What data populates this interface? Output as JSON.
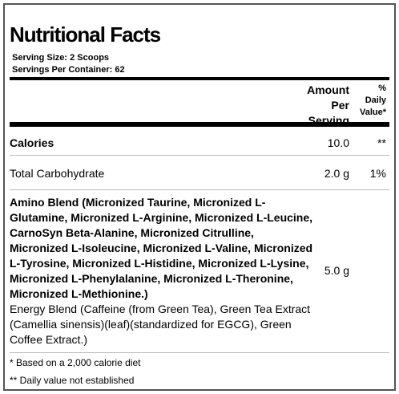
{
  "title": "Nutritional Facts",
  "serving": {
    "size_label": "Serving Size:  2 Scoops",
    "per_container_label": "Servings Per Container:  62"
  },
  "header": {
    "amount_line1": "Amount",
    "amount_line2": "Per",
    "amount_line3": "Serving",
    "dv_line1": "%",
    "dv_line2": "Daily",
    "dv_line3": "Value*"
  },
  "rows": [
    {
      "label": "Calories",
      "amount": "10.0",
      "dv": "**"
    },
    {
      "label": "Total Carbohydrate",
      "amount": "2.0 g",
      "dv": "1%"
    }
  ],
  "blend": {
    "amino": "Amino Blend (Micronized Taurine, Micronized L-Glutamine, Micronized L-Arginine, Micronized L-Leucine, CarnoSyn Beta-Alanine, Micronized Citrulline, Micronized L-Isoleucine, Micronized L-Valine, Micronized L-Tyrosine, Micronized L-Histidine, Micronized L-Lysine, Micronized L-Phenylalanine, Micronized L-Theronine, Micronized L-Methionine.)",
    "energy": "Energy Blend (Caffeine (from Green Tea), Green Tea Extract (Camellia sinensis)(leaf)(standardized for EGCG), Green Coffee Extract.)",
    "amount": "5.0 g"
  },
  "footnotes": {
    "f1": "* Based on a 2,000 calorie diet",
    "f2": "** Daily value not established"
  }
}
